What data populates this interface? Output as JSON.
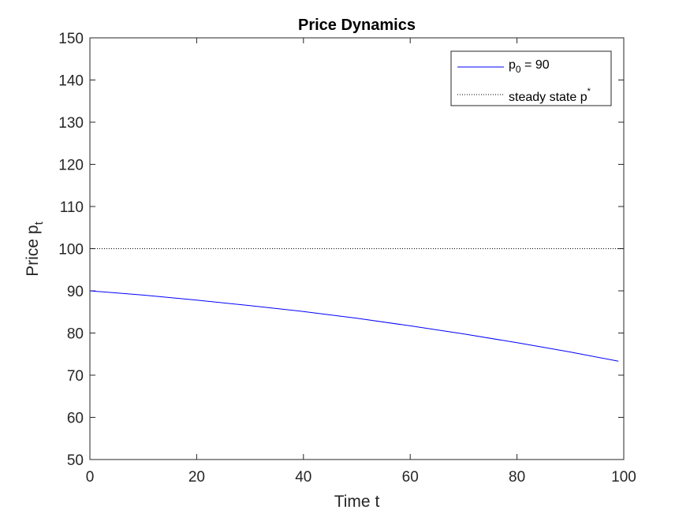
{
  "chart_data": {
    "type": "line",
    "title": "Price Dynamics",
    "xlabel": "Time t",
    "ylabel": "Price p",
    "ylabel_subscript": "t",
    "xlim": [
      0,
      100
    ],
    "ylim": [
      50,
      150
    ],
    "xticks": [
      0,
      20,
      40,
      60,
      80,
      100
    ],
    "yticks": [
      50,
      60,
      70,
      80,
      90,
      100,
      110,
      120,
      130,
      140,
      150
    ],
    "grid": false,
    "legend_position": "top-right",
    "series": [
      {
        "name": "p",
        "name_subscript": "0",
        "name_suffix": " = 90",
        "color": "#0000ff",
        "style": "solid",
        "x": [
          0,
          10,
          20,
          30,
          40,
          50,
          60,
          70,
          80,
          90,
          99
        ],
        "y": [
          90.0,
          89.0,
          87.8,
          86.5,
          85.1,
          83.5,
          81.7,
          79.8,
          77.7,
          75.5,
          73.3
        ]
      },
      {
        "name": "steady state p",
        "name_superscript": "*",
        "color": "#000000",
        "style": "dotted",
        "x": [
          0,
          100
        ],
        "y": [
          100,
          100
        ]
      }
    ]
  }
}
